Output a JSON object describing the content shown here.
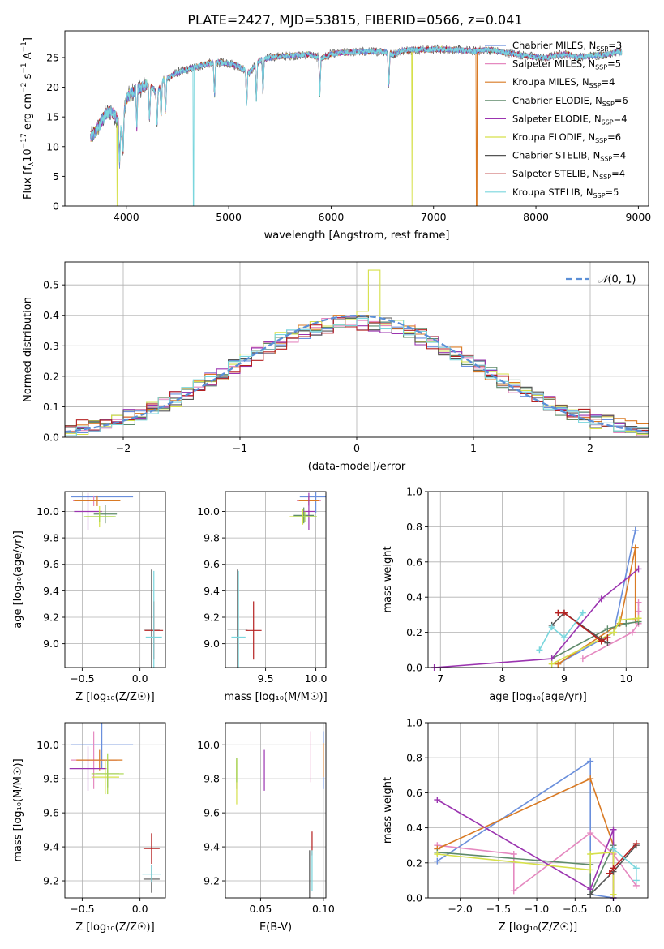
{
  "title": "PLATE=2427, MJD=53815, FIBERID=0566, z=0.041",
  "series_legend": [
    {
      "prefix": "Chabrier MILES, N",
      "sub": "SSP",
      "suffix": "=3",
      "color": "#6a8fdc"
    },
    {
      "prefix": "Salpeter MILES, N",
      "sub": "SSP",
      "suffix": "=5",
      "color": "#e589c0"
    },
    {
      "prefix": "Kroupa MILES, N",
      "sub": "SSP",
      "suffix": "=4",
      "color": "#d97a24"
    },
    {
      "prefix": "Chabrier ELODIE, N",
      "sub": "SSP",
      "suffix": "=6",
      "color": "#5e8a6a"
    },
    {
      "prefix": "Salpeter ELODIE, N",
      "sub": "SSP",
      "suffix": "=4",
      "color": "#9b34b0"
    },
    {
      "prefix": "Kroupa ELODIE, N",
      "sub": "SSP",
      "suffix": "=6",
      "color": "#d6e04a"
    },
    {
      "prefix": "Chabrier STELIB, N",
      "sub": "SSP",
      "suffix": "=4",
      "color": "#555555"
    },
    {
      "prefix": "Salpeter STELIB, N",
      "sub": "SSP",
      "suffix": "=4",
      "color": "#b52020"
    },
    {
      "prefix": "Kroupa STELIB, N",
      "sub": "SSP",
      "suffix": "=5",
      "color": "#7ad6dd"
    }
  ],
  "extra_colors": {
    "lime": "#a8d64a"
  },
  "chart_data": [
    {
      "id": "spectrum",
      "type": "line",
      "xlabel": "wavelength [Angstrom, rest frame]",
      "ylabel_parts": [
        "Flux [f",
        "λ",
        "10",
        "−17",
        " erg cm",
        "−2",
        " s",
        "−1",
        " A",
        "−1",
        "]"
      ],
      "xlim": [
        3400,
        9100
      ],
      "ylim": [
        0,
        29.5
      ],
      "xticks": [
        4000,
        5000,
        6000,
        7000,
        8000,
        9000
      ],
      "yticks": [
        0,
        5,
        10,
        15,
        20,
        25
      ],
      "grid": false,
      "legend_position": "upper-right",
      "envelope": {
        "wavelength": [
          3650,
          3700,
          3750,
          3800,
          3850,
          3900,
          3950,
          4000,
          4050,
          4100,
          4150,
          4200,
          4250,
          4300,
          4350,
          4400,
          4450,
          4500,
          4600,
          4700,
          4800,
          4900,
          5000,
          5100,
          5200,
          5300,
          5400,
          5500,
          5600,
          5700,
          5800,
          5900,
          6000,
          6100,
          6200,
          6300,
          6400,
          6500,
          6600,
          6700,
          6800,
          6900,
          7000,
          7100,
          7200,
          7300,
          7400,
          7500,
          7600,
          7700,
          7800,
          7900,
          8000,
          8100,
          8200,
          8300,
          8400,
          8500,
          8600,
          8700,
          8800,
          8850
        ],
        "flux": [
          11.5,
          12.5,
          14.0,
          15.5,
          16.0,
          15.0,
          12.5,
          18.0,
          19.0,
          19.5,
          20.0,
          20.5,
          20.0,
          19.0,
          21.0,
          21.5,
          22.0,
          22.5,
          23.0,
          23.5,
          24.0,
          24.2,
          24.0,
          23.5,
          22.5,
          24.5,
          25.0,
          25.2,
          25.3,
          25.4,
          25.5,
          24.8,
          25.6,
          25.8,
          25.9,
          26.0,
          26.0,
          26.1,
          25.5,
          26.2,
          26.3,
          26.3,
          26.4,
          26.4,
          26.3,
          26.2,
          26.1,
          26.3,
          26.2,
          25.8,
          25.6,
          25.3,
          25.1,
          24.9,
          25.4,
          25.6,
          25.0,
          25.2,
          25.4,
          25.6,
          26.0,
          25.8
        ]
      },
      "absorption_lines": [
        3934,
        3968,
        4102,
        4227,
        4300,
        4340,
        4383,
        4861,
        5175,
        5270,
        5335,
        5890,
        6563
      ],
      "dropouts": [
        {
          "series": 5,
          "wavelength": 3910
        },
        {
          "series": 8,
          "wavelength": 4655
        },
        {
          "series": 5,
          "wavelength": 6790
        },
        {
          "series": 2,
          "wavelength": 7420
        }
      ],
      "range_end": [
        8840,
        8840,
        7430,
        8840,
        8840,
        8840,
        8840,
        8840,
        8840
      ]
    },
    {
      "id": "residuals",
      "type": "histogram",
      "xlabel": "(data-model)/error",
      "ylabel": "Normed distribution",
      "xlim": [
        -2.5,
        2.5
      ],
      "ylim": [
        0,
        0.575
      ],
      "xticks": [
        -2,
        -1,
        0,
        1,
        2
      ],
      "xtick_labels": [
        "−2",
        "−1",
        "0",
        "1",
        "2"
      ],
      "yticks": [
        0.0,
        0.1,
        0.2,
        0.3,
        0.4,
        0.5
      ],
      "ytick_labels": [
        "0.0",
        "0.1",
        "0.2",
        "0.3",
        "0.4",
        "0.5"
      ],
      "grid": true,
      "bin_width": 0.1,
      "bin_start": -2.5,
      "reference_curve": {
        "label": "N(0, 1)",
        "label_main": "𝒩",
        "label_args": "(0, 1)",
        "style": "dashed",
        "color": "#5b8fd6"
      },
      "legend_position": "upper-right"
    },
    {
      "id": "age-vs-Z",
      "type": "errorbar",
      "xlabel": "Z [log₁₀(Z/Z☉)]",
      "ylabel": "age  [log₁₀(age/yr)]",
      "xlim": [
        -0.65,
        0.22
      ],
      "ylim": [
        8.82,
        10.15
      ],
      "xticks": [
        -0.5,
        0.0
      ],
      "xtick_labels": [
        "−0.5",
        "0.0"
      ],
      "yticks": [
        9.0,
        9.2,
        9.4,
        9.6,
        9.8,
        10.0
      ],
      "ytick_labels": [
        "9.0",
        "9.2",
        "9.4",
        "9.6",
        "9.8",
        "10.0"
      ],
      "grid": true,
      "points": [
        {
          "s": 0,
          "x": -0.33,
          "y": 10.11,
          "xe": 0.27,
          "ye": 0.0
        },
        {
          "s": 1,
          "x": -0.4,
          "y": 10.08,
          "xe": 0.18,
          "ye": 0.04
        },
        {
          "s": 2,
          "x": -0.37,
          "y": 10.08,
          "xe": 0.2,
          "ye": 0.04
        },
        {
          "s": 3,
          "x": -0.3,
          "y": 9.98,
          "xe": 0.1,
          "ye": 0.07
        },
        {
          "s": 4,
          "x": -0.45,
          "y": 10.0,
          "xe": 0.12,
          "ye": 0.14
        },
        {
          "s": 5,
          "x": -0.35,
          "y": 9.96,
          "xe": 0.12,
          "ye": 0.08
        },
        {
          "s": 6,
          "x": 0.1,
          "y": 9.11,
          "xe": 0.07,
          "ye": 0.45
        },
        {
          "s": 7,
          "x": 0.12,
          "y": 9.1,
          "xe": 0.08,
          "ye": 0.22
        },
        {
          "s": 8,
          "x": 0.12,
          "y": 9.05,
          "xe": 0.07,
          "ye": 0.5
        },
        {
          "s": 9,
          "x": -0.35,
          "y": 9.96,
          "xe": 0.14,
          "ye": 0.04
        }
      ]
    },
    {
      "id": "age-vs-mass",
      "type": "errorbar",
      "xlabel": "mass [log₁₀(M/M☉)]",
      "ylabel": "",
      "xlim": [
        9.1,
        10.1
      ],
      "ylim": [
        8.82,
        10.15
      ],
      "xticks": [
        9.5,
        10.0
      ],
      "xtick_labels": [
        "9.5",
        "10.0"
      ],
      "yticks": [
        9.0,
        9.2,
        9.4,
        9.6,
        9.8,
        10.0
      ],
      "ytick_labels": [
        "9.0",
        "9.2",
        "9.4",
        "9.6",
        "9.8",
        "10.0"
      ],
      "grid": true,
      "points": [
        {
          "s": 0,
          "x": 10.0,
          "y": 10.11,
          "xe": 0.16,
          "ye": 0.12
        },
        {
          "s": 1,
          "x": 9.93,
          "y": 10.08,
          "xe": 0.12,
          "ye": 0.04
        },
        {
          "s": 2,
          "x": 9.93,
          "y": 10.08,
          "xe": 0.1,
          "ye": 0.03
        },
        {
          "s": 3,
          "x": 9.88,
          "y": 9.97,
          "xe": 0.1,
          "ye": 0.06
        },
        {
          "s": 4,
          "x": 9.93,
          "y": 10.0,
          "xe": 0.06,
          "ye": 0.14
        },
        {
          "s": 5,
          "x": 9.87,
          "y": 9.96,
          "xe": 0.13,
          "ye": 0.06
        },
        {
          "s": 6,
          "x": 9.22,
          "y": 9.11,
          "xe": 0.1,
          "ye": 0.45
        },
        {
          "s": 7,
          "x": 9.38,
          "y": 9.1,
          "xe": 0.08,
          "ye": 0.22
        },
        {
          "s": 8,
          "x": 9.23,
          "y": 9.05,
          "xe": 0.07,
          "ye": 0.5
        },
        {
          "s": 9,
          "x": 9.89,
          "y": 9.96,
          "xe": 0.12,
          "ye": 0.04
        }
      ]
    },
    {
      "id": "mass-weight-vs-age",
      "type": "line",
      "xlabel": "age  [log₁₀(age/yr)]",
      "ylabel": "mass weight",
      "xlim": [
        6.8,
        10.35
      ],
      "ylim": [
        0,
        1.0
      ],
      "xticks": [
        7,
        8,
        9,
        10
      ],
      "xtick_labels": [
        "7",
        "8",
        "9",
        "10"
      ],
      "yticks": [
        0.0,
        0.2,
        0.4,
        0.6,
        0.8,
        1.0
      ],
      "ytick_labels": [
        "0.0",
        "0.2",
        "0.4",
        "0.6",
        "0.8",
        "1.0"
      ],
      "grid": true,
      "series": [
        {
          "s": 0,
          "x": [
            8.9,
            9.8,
            10.15
          ],
          "y": [
            0.02,
            0.2,
            0.78
          ]
        },
        {
          "s": 1,
          "x": [
            9.3,
            10.1,
            10.2,
            10.2,
            10.2
          ],
          "y": [
            0.05,
            0.2,
            0.25,
            0.32,
            0.37
          ]
        },
        {
          "s": 2,
          "x": [
            8.9,
            9.9,
            10.15,
            10.15
          ],
          "y": [
            0.02,
            0.25,
            0.68,
            0.27
          ]
        },
        {
          "s": 3,
          "x": [
            8.8,
            9.7,
            10.0,
            10.2
          ],
          "y": [
            0.05,
            0.22,
            0.25,
            0.26
          ]
        },
        {
          "s": 4,
          "x": [
            6.9,
            8.8,
            9.6,
            10.2
          ],
          "y": [
            0.0,
            0.05,
            0.39,
            0.56
          ]
        },
        {
          "s": 5,
          "x": [
            8.8,
            9.8,
            9.9,
            10.2
          ],
          "y": [
            0.02,
            0.2,
            0.27,
            0.28
          ]
        },
        {
          "s": 6,
          "x": [
            8.8,
            9.0,
            9.6,
            9.7
          ],
          "y": [
            0.24,
            0.31,
            0.16,
            0.14
          ]
        },
        {
          "s": 7,
          "x": [
            8.9,
            9.0,
            9.6,
            9.7
          ],
          "y": [
            0.31,
            0.31,
            0.15,
            0.17
          ]
        },
        {
          "s": 8,
          "x": [
            8.6,
            8.8,
            9.0,
            9.3
          ],
          "y": [
            0.1,
            0.23,
            0.17,
            0.31
          ]
        }
      ]
    },
    {
      "id": "mass-vs-Z",
      "type": "errorbar",
      "xlabel": "Z [log₁₀(Z/Z☉)]",
      "ylabel": "mass [log₁₀(M/M☉)]",
      "xlim": [
        -0.65,
        0.22
      ],
      "ylim": [
        9.1,
        10.13
      ],
      "xticks": [
        -0.5,
        0.0
      ],
      "xtick_labels": [
        "−0.5",
        "0.0"
      ],
      "yticks": [
        9.2,
        9.4,
        9.6,
        9.8,
        10.0
      ],
      "ytick_labels": [
        "9.2",
        "9.4",
        "9.6",
        "9.8",
        "10.0"
      ],
      "grid": true,
      "points": [
        {
          "s": 0,
          "x": -0.33,
          "y": 10.0,
          "xe": 0.27,
          "ye": 0.14
        },
        {
          "s": 1,
          "x": -0.4,
          "y": 9.91,
          "xe": 0.2,
          "ye": 0.17
        },
        {
          "s": 2,
          "x": -0.35,
          "y": 9.91,
          "xe": 0.2,
          "ye": 0.06
        },
        {
          "s": 3,
          "x": -0.28,
          "y": 9.83,
          "xe": 0.1,
          "ye": 0.08
        },
        {
          "s": 4,
          "x": -0.45,
          "y": 9.86,
          "xe": 0.16,
          "ye": 0.13
        },
        {
          "s": 5,
          "x": -0.3,
          "y": 9.81,
          "xe": 0.12,
          "ye": 0.1
        },
        {
          "s": 6,
          "x": 0.1,
          "y": 9.21,
          "xe": 0.07,
          "ye": 0.08
        },
        {
          "s": 7,
          "x": 0.1,
          "y": 9.39,
          "xe": 0.07,
          "ye": 0.09
        },
        {
          "s": 8,
          "x": 0.1,
          "y": 9.24,
          "xe": 0.08,
          "ye": 0.05
        },
        {
          "s": 9,
          "x": -0.28,
          "y": 9.83,
          "xe": 0.14,
          "ye": 0.12
        }
      ]
    },
    {
      "id": "mass-vs-EBV",
      "type": "errorbar",
      "xlabel": "E(B-V)",
      "ylabel": "",
      "xlim": [
        0.022,
        0.102
      ],
      "ylim": [
        9.1,
        10.13
      ],
      "xticks": [
        0.05,
        0.1
      ],
      "xtick_labels": [
        "0.05",
        "0.10"
      ],
      "yticks": [
        9.2,
        9.4,
        9.6,
        9.8,
        10.0
      ],
      "ytick_labels": [
        "9.2",
        "9.4",
        "9.6",
        "9.8",
        "10.0"
      ],
      "grid": true,
      "points": [
        {
          "s": 0,
          "x": 0.1,
          "y": 9.91,
          "xe": 0,
          "ye": 0.17
        },
        {
          "s": 1,
          "x": 0.09,
          "y": 9.93,
          "xe": 0,
          "ye": 0.15
        },
        {
          "s": 2,
          "x": 0.1,
          "y": 9.91,
          "xe": 0,
          "ye": 0.1
        },
        {
          "s": 3,
          "x": 0.031,
          "y": 9.83,
          "xe": 0,
          "ye": 0.09
        },
        {
          "s": 4,
          "x": 0.053,
          "y": 9.85,
          "xe": 0,
          "ye": 0.12
        },
        {
          "s": 5,
          "x": 0.031,
          "y": 9.78,
          "xe": 0,
          "ye": 0.13
        },
        {
          "s": 6,
          "x": 0.089,
          "y": 9.23,
          "xe": 0,
          "ye": 0.15
        },
        {
          "s": 7,
          "x": 0.091,
          "y": 9.42,
          "xe": 0,
          "ye": 0.07
        },
        {
          "s": 8,
          "x": 0.091,
          "y": 9.26,
          "xe": 0,
          "ye": 0.12
        },
        {
          "s": 9,
          "x": 0.031,
          "y": 9.85,
          "xe": 0,
          "ye": 0.07
        }
      ]
    },
    {
      "id": "mass-weight-vs-Z",
      "type": "line",
      "xlabel": "Z [log₁₀(Z/Z☉)]",
      "ylabel": "mass weight",
      "xlim": [
        -2.42,
        0.45
      ],
      "ylim": [
        0,
        1.0
      ],
      "xticks": [
        -2.0,
        -1.5,
        -1.0,
        -0.5,
        0.0
      ],
      "xtick_labels": [
        "−2.0",
        "−1.5",
        "−1.0",
        "−0.5",
        "0.0"
      ],
      "yticks": [
        0.0,
        0.2,
        0.4,
        0.6,
        0.8,
        1.0
      ],
      "ytick_labels": [
        "0.0",
        "0.2",
        "0.4",
        "0.6",
        "0.8",
        "1.0"
      ],
      "grid": true,
      "series": [
        {
          "s": 0,
          "x": [
            -2.3,
            -0.3,
            -0.3,
            0.0
          ],
          "y": [
            0.21,
            0.78,
            0.02,
            0.0
          ]
        },
        {
          "s": 1,
          "x": [
            -2.3,
            -1.3,
            -1.3,
            -0.3,
            0.0,
            0.3
          ],
          "y": [
            0.3,
            0.25,
            0.04,
            0.37,
            0.25,
            0.07
          ]
        },
        {
          "s": 2,
          "x": [
            -2.3,
            -0.3,
            0.0,
            0.0
          ],
          "y": [
            0.28,
            0.68,
            0.3,
            0.02
          ]
        },
        {
          "s": 3,
          "x": [
            -2.3,
            -0.3,
            -0.3,
            0.0
          ],
          "y": [
            0.26,
            0.19,
            0.02,
            0.3
          ]
        },
        {
          "s": 4,
          "x": [
            -2.3,
            -0.3,
            0.0,
            0.0
          ],
          "y": [
            0.56,
            0.05,
            0.39,
            0.0
          ]
        },
        {
          "s": 5,
          "x": [
            -2.3,
            -0.3,
            -0.3,
            0.0,
            0.0
          ],
          "y": [
            0.25,
            0.16,
            0.25,
            0.26,
            0.02
          ]
        },
        {
          "s": 6,
          "x": [
            -0.3,
            0.0,
            0.3
          ],
          "y": [
            0.02,
            0.15,
            0.3
          ]
        },
        {
          "s": 7,
          "x": [
            -0.05,
            0.0,
            0.3
          ],
          "y": [
            0.14,
            0.17,
            0.31
          ]
        },
        {
          "s": 8,
          "x": [
            0.0,
            0.3,
            0.3
          ],
          "y": [
            0.28,
            0.17,
            0.1
          ]
        }
      ]
    }
  ]
}
